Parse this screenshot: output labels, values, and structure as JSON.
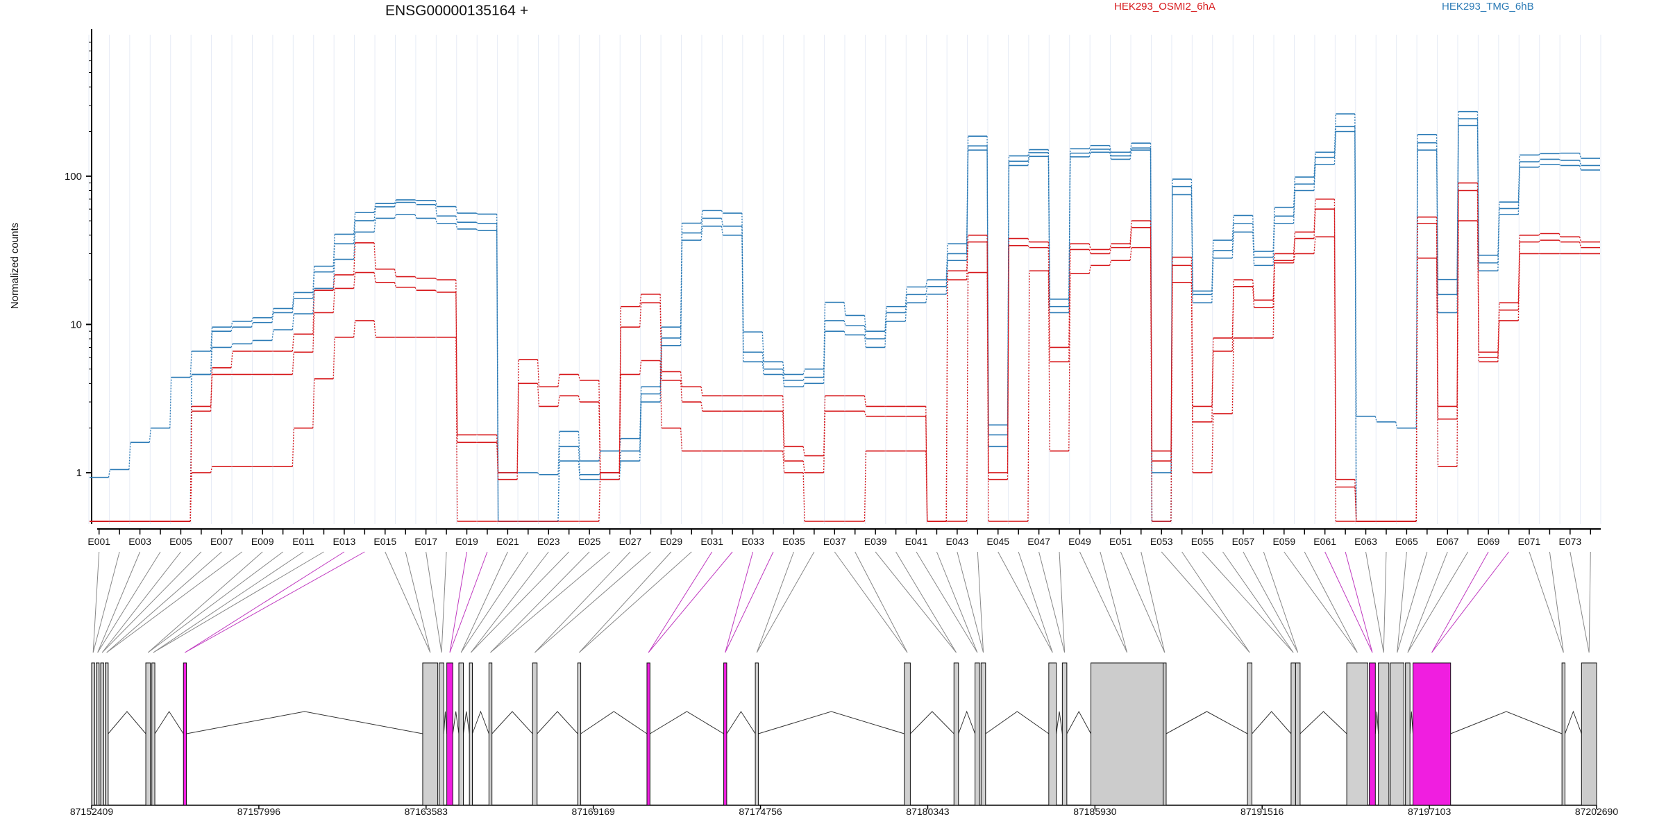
{
  "chart_data": {
    "type": "line",
    "title": "ENSG00000135164 +",
    "ylabel": "Normalized counts",
    "yscale": "log",
    "ylim": [
      0.45,
      900
    ],
    "yticks": [
      "1",
      "10",
      "100"
    ],
    "grid": true,
    "legend": [
      "HEK293_OSMI2_6hA",
      "HEK293_TMG_6hB"
    ],
    "exon_labels": [
      "E001",
      "E003",
      "E005",
      "E007",
      "E009",
      "E011",
      "E013",
      "E015",
      "E017",
      "E019",
      "E021",
      "E023",
      "E025",
      "E027",
      "E029",
      "E031",
      "E033",
      "E035",
      "E037",
      "E039",
      "E041",
      "E043",
      "E045",
      "E047",
      "E049",
      "E051",
      "E053",
      "E055",
      "E057",
      "E059",
      "E061",
      "E063",
      "E065",
      "E067",
      "E069",
      "E071",
      "E073"
    ],
    "exon_count": 74,
    "genomic_ticks": [
      "87152409",
      "87157996",
      "87163583",
      "87169169",
      "87174756",
      "87180343",
      "87185930",
      "87191516",
      "87197103",
      "87202690"
    ],
    "genomic_range": [
      87152409,
      87202690
    ],
    "series": [
      {
        "name": "HEK293_TMG_6hB",
        "color": "#2c7bb6",
        "dashed": false,
        "values": [
          0.93,
          1.05,
          1.6,
          2.0,
          4.4,
          6.6,
          9.6,
          10.5,
          11.1,
          12.8,
          16.4,
          24.7,
          40.6,
          56.8,
          65.4,
          69.2,
          68.6,
          62.4,
          56.3,
          55.5,
          1.0,
          1.0,
          0.97,
          1.9,
          1.2,
          1.4,
          1.7,
          3.8,
          9.6,
          48.2,
          58.6,
          56.3,
          8.9,
          5.6,
          4.6,
          5.0,
          14.1,
          11.5,
          9.0,
          13.2,
          17.9,
          20.0,
          35.0,
          186,
          2.1,
          137,
          151,
          14.8,
          153,
          161,
          145,
          167,
          1.0,
          95.5,
          16.8,
          37.0,
          54.3,
          31.1,
          61.6,
          98.6,
          145,
          263,
          2.4,
          2.2,
          2.0,
          191,
          20.1,
          273,
          29.3,
          66.9,
          139,
          142,
          143,
          132
        ]
      },
      {
        "name": "HEK293_TMG_6hB",
        "color": "#2c7bb6",
        "dashed": false,
        "values": [
          0.47,
          0.47,
          0.47,
          0.47,
          0.47,
          4.6,
          9.0,
          9.6,
          10.3,
          12.0,
          15.0,
          22.6,
          35.0,
          50.1,
          62.1,
          66.6,
          64.3,
          53.9,
          48.9,
          48.0,
          0.47,
          0.47,
          0.47,
          1.5,
          0.97,
          1.0,
          1.4,
          3.4,
          8.1,
          41.4,
          52.0,
          46.0,
          6.5,
          5.0,
          4.2,
          4.4,
          10.6,
          9.8,
          8.0,
          12.0,
          15.9,
          18.0,
          30.0,
          160,
          1.8,
          126,
          144,
          13.2,
          143,
          152,
          137,
          155,
          0.47,
          85.2,
          15.9,
          31.5,
          47.8,
          28.4,
          53.8,
          88.5,
          134,
          216,
          0.47,
          0.47,
          0.47,
          168,
          15.9,
          244,
          26.0,
          60.5,
          125,
          130,
          128,
          118
        ]
      },
      {
        "name": "HEK293_TMG_6hB",
        "color": "#2c7bb6",
        "dashed": false,
        "values": [
          0.47,
          0.47,
          0.47,
          0.47,
          0.47,
          4.6,
          7.0,
          7.4,
          7.8,
          9.2,
          11.8,
          17.5,
          27.5,
          42.0,
          52.0,
          55.0,
          52.0,
          48.0,
          44.0,
          43.0,
          0.47,
          0.47,
          0.47,
          1.2,
          0.9,
          0.9,
          1.2,
          3.0,
          7.2,
          37.0,
          46.0,
          40.0,
          5.6,
          4.6,
          3.8,
          4.0,
          9.0,
          8.5,
          7.0,
          10.5,
          14.0,
          16.0,
          27.0,
          150,
          1.5,
          118,
          136,
          12.0,
          135,
          145,
          130,
          150,
          0.47,
          75.0,
          14.0,
          28.0,
          42.0,
          25.0,
          48.0,
          80.0,
          120,
          200,
          0.47,
          0.47,
          0.47,
          150,
          12.0,
          220,
          23.0,
          55.0,
          115,
          120,
          118,
          110
        ]
      },
      {
        "name": "HEK293_OSMI2_6hA",
        "color": "#d7191c",
        "dashed": false,
        "values": [
          0.47,
          0.47,
          0.47,
          0.47,
          0.47,
          1.0,
          1.1,
          1.1,
          1.1,
          1.1,
          2.0,
          4.3,
          8.2,
          10.6,
          8.2,
          8.2,
          8.2,
          8.2,
          0.47,
          0.47,
          0.47,
          0.47,
          0.47,
          0.47,
          0.47,
          1.0,
          4.6,
          5.7,
          2.0,
          1.4,
          1.4,
          1.4,
          1.4,
          1.4,
          1.0,
          0.47,
          0.47,
          0.47,
          1.4,
          1.4,
          1.4,
          0.47,
          0.47,
          22.4,
          0.47,
          0.47,
          23.0,
          1.4,
          22.0,
          25.0,
          27.0,
          33.0,
          0.47,
          19.2,
          1.0,
          2.5,
          8.1,
          8.1,
          26.0,
          30.0,
          39.0,
          0.47,
          0.47,
          0.47,
          0.47,
          28.0,
          1.1,
          50.0,
          5.6,
          10.6,
          30.0,
          30.0,
          30.0,
          30.0
        ]
      },
      {
        "name": "HEK293_OSMI2_6hA",
        "color": "#d7191c",
        "dashed": false,
        "values": [
          0.47,
          0.47,
          0.47,
          0.47,
          0.47,
          2.6,
          4.6,
          4.6,
          4.6,
          4.6,
          6.5,
          12.0,
          17.5,
          22.4,
          19.2,
          17.8,
          17.0,
          16.5,
          1.8,
          1.8,
          1.0,
          5.8,
          3.8,
          4.6,
          4.2,
          1.0,
          13.2,
          16.0,
          4.8,
          3.8,
          3.3,
          3.3,
          3.3,
          3.3,
          1.5,
          1.3,
          3.3,
          3.3,
          2.8,
          2.8,
          2.8,
          0.47,
          23.0,
          40.0,
          1.0,
          38.0,
          36.0,
          7.0,
          35.0,
          32.0,
          35.0,
          50.0,
          1.4,
          28.4,
          2.8,
          8.1,
          20.0,
          14.6,
          30.0,
          42.0,
          70.0,
          0.9,
          0.47,
          0.47,
          0.47,
          53.0,
          2.8,
          90.0,
          6.5,
          14.0,
          40.0,
          41.0,
          39.0,
          36.0
        ]
      },
      {
        "name": "HEK293_OSMI2_6hA",
        "color": "#d7191c",
        "dashed": false,
        "values": [
          0.47,
          0.47,
          0.47,
          0.47,
          0.47,
          2.8,
          5.1,
          6.6,
          6.6,
          6.6,
          8.6,
          17.0,
          21.6,
          35.5,
          23.6,
          21.0,
          20.5,
          20.0,
          1.6,
          1.6,
          0.9,
          4.0,
          2.8,
          3.3,
          3.0,
          0.9,
          9.6,
          14.0,
          4.2,
          3.0,
          2.6,
          2.6,
          2.6,
          2.6,
          1.2,
          1.0,
          2.6,
          2.6,
          2.4,
          2.4,
          2.4,
          0.47,
          20.0,
          36.0,
          0.9,
          34.0,
          33.0,
          5.6,
          32.0,
          30.0,
          33.0,
          45.0,
          1.2,
          25.0,
          2.2,
          6.6,
          18.0,
          13.0,
          27.0,
          38.0,
          60.0,
          0.8,
          0.47,
          0.47,
          0.47,
          48.0,
          2.3,
          80.0,
          6.0,
          12.5,
          36.0,
          37.0,
          36.0,
          33.0
        ]
      }
    ]
  }
}
